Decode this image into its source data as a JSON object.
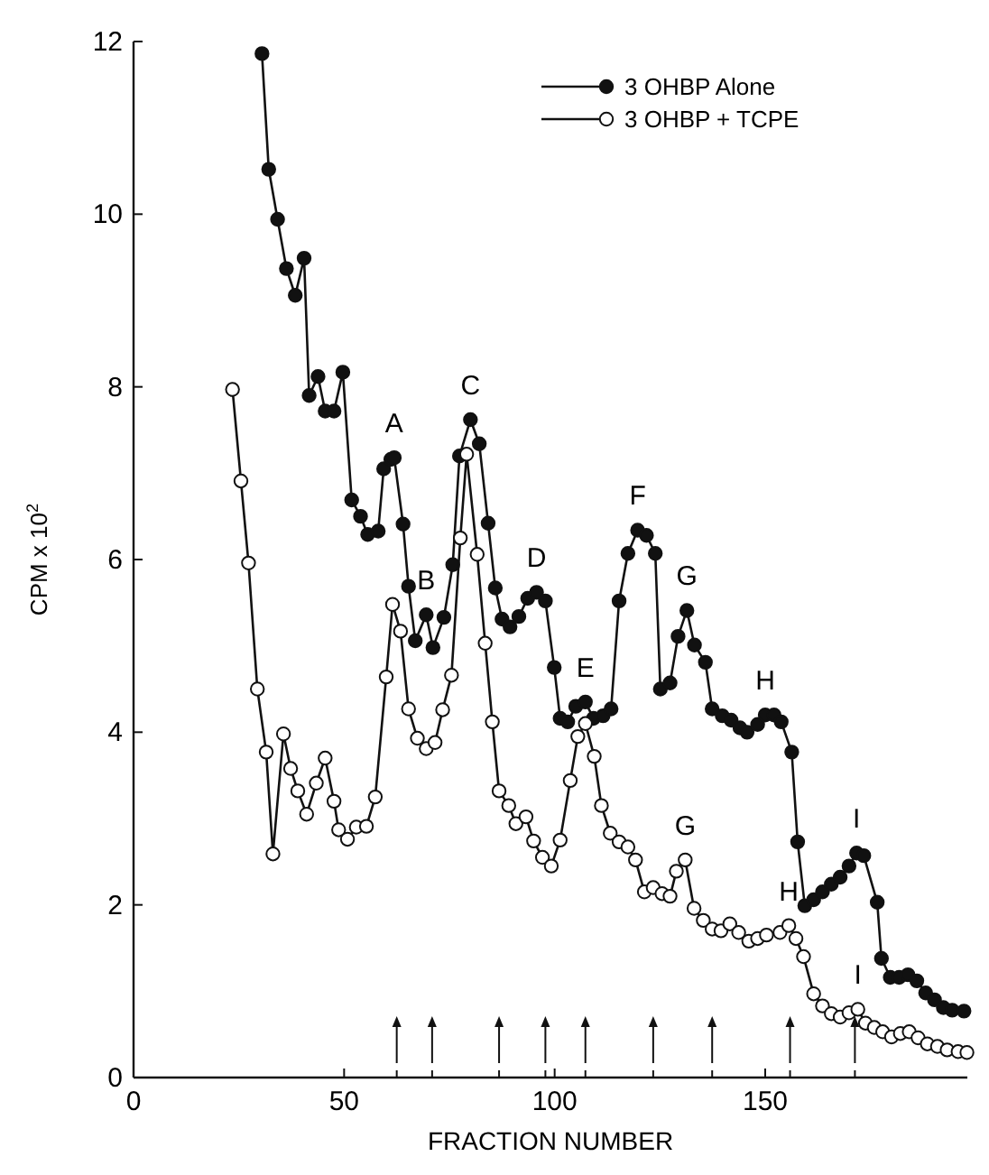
{
  "chart_data": {
    "type": "line",
    "xlabel": "FRACTION NUMBER",
    "ylabel": "CPM x 10$^{2}$",
    "xlim": [
      0,
      198
    ],
    "xticks": [
      0,
      50,
      100,
      150,
      {
        "value": 62.5,
        "label": null
      },
      {
        "value": 70.9,
        "label": null
      },
      {
        "value": 86.8,
        "label": null
      },
      {
        "value": 97.8,
        "label": null
      },
      {
        "value": 107.3,
        "label": null
      },
      {
        "value": 123.4,
        "label": null
      },
      {
        "value": 137.4,
        "label": null
      },
      {
        "value": 155.9,
        "label": null
      },
      {
        "value": 171.3,
        "label": null
      }
    ],
    "ylim": [
      0,
      12
    ],
    "yticks": [
      0,
      2,
      4,
      6,
      8,
      10,
      12
    ],
    "grid": false,
    "legend": "top right",
    "line_style": "solid",
    "tick_labels": "xy",
    "series": [
      {
        "name": "3 OHBP Alone",
        "color": "#111111",
        "marker": "circle",
        "x": [
          30.5,
          32.1,
          34.2,
          36.3,
          38.4,
          40.5,
          41.7,
          43.8,
          45.5,
          47.6,
          49.7,
          51.8,
          53.9,
          55.6,
          58.1,
          59.4,
          61.1,
          61.9,
          64.0,
          65.3,
          66.9,
          69.5,
          71.1,
          73.7,
          75.8,
          77.4,
          80.0,
          82.1,
          84.2,
          85.9,
          87.5,
          89.4,
          91.5,
          93.6,
          95.7,
          97.8,
          99.9,
          101.3,
          103.1,
          105.0,
          107.3,
          109.2,
          111.5,
          113.4,
          115.3,
          117.4,
          119.7,
          121.8,
          123.9,
          125.1,
          127.4,
          129.3,
          131.4,
          133.2,
          135.8,
          137.4,
          139.8,
          141.9,
          144.0,
          145.7,
          148.2,
          150.0,
          152.1,
          153.8,
          156.3,
          157.7,
          159.4,
          161.5,
          163.6,
          165.7,
          167.8,
          169.9,
          171.7,
          173.4,
          176.6,
          177.6,
          179.7,
          181.8,
          183.9,
          186.0,
          188.1,
          190.2,
          192.3,
          194.4,
          197.2
        ],
        "values": [
          11.86,
          10.52,
          9.94,
          9.37,
          9.06,
          9.49,
          7.9,
          8.12,
          7.72,
          7.72,
          8.17,
          6.69,
          6.5,
          6.29,
          6.33,
          7.05,
          7.16,
          7.18,
          6.41,
          5.69,
          5.06,
          5.36,
          4.98,
          5.33,
          5.94,
          7.2,
          7.62,
          7.34,
          6.42,
          5.67,
          5.31,
          5.22,
          5.34,
          5.55,
          5.62,
          5.52,
          4.75,
          4.16,
          4.12,
          4.3,
          4.35,
          4.16,
          4.19,
          4.27,
          5.52,
          6.07,
          6.34,
          6.28,
          6.07,
          4.5,
          4.57,
          5.11,
          5.41,
          5.01,
          4.81,
          4.27,
          4.19,
          4.14,
          4.05,
          4.0,
          4.09,
          4.2,
          4.2,
          4.12,
          3.77,
          2.73,
          1.99,
          2.06,
          2.15,
          2.24,
          2.32,
          2.45,
          2.6,
          2.57,
          2.03,
          1.38,
          1.16,
          1.16,
          1.19,
          1.12,
          0.98,
          0.9,
          0.81,
          0.78,
          0.77
        ]
      },
      {
        "name": "3 OHBP + TCPE",
        "color": "#111111",
        "marker": "circle",
        "x": [
          23.5,
          25.5,
          27.3,
          29.4,
          31.5,
          33.1,
          35.6,
          37.3,
          39.0,
          41.1,
          43.4,
          45.5,
          47.6,
          48.7,
          50.8,
          52.9,
          55.3,
          57.4,
          60.0,
          61.5,
          63.4,
          65.3,
          67.4,
          69.5,
          71.6,
          73.4,
          75.5,
          77.6,
          79.1,
          81.6,
          83.5,
          85.2,
          86.8,
          89.1,
          90.8,
          93.2,
          95.0,
          97.1,
          99.2,
          101.3,
          103.7,
          105.5,
          107.3,
          109.4,
          111.1,
          113.2,
          115.3,
          117.4,
          119.2,
          121.3,
          123.4,
          125.5,
          127.4,
          128.9,
          131.0,
          133.1,
          135.3,
          137.4,
          139.5,
          141.6,
          143.7,
          146.1,
          148.2,
          150.3,
          153.5,
          155.6,
          157.3,
          159.1,
          161.5,
          163.6,
          165.7,
          167.8,
          169.9,
          172.0,
          173.8,
          175.9,
          177.9,
          180.0,
          182.1,
          184.2,
          186.3,
          188.5,
          190.9,
          193.2,
          195.8,
          197.9
        ],
        "values": [
          7.97,
          6.91,
          5.96,
          4.5,
          3.77,
          2.59,
          3.98,
          3.58,
          3.32,
          3.05,
          3.41,
          3.7,
          3.2,
          2.87,
          2.76,
          2.9,
          2.91,
          3.25,
          4.64,
          5.48,
          5.17,
          4.27,
          3.93,
          3.81,
          3.88,
          4.26,
          4.66,
          6.25,
          7.22,
          6.06,
          5.03,
          4.12,
          3.32,
          3.15,
          2.94,
          3.02,
          2.74,
          2.55,
          2.45,
          2.75,
          3.44,
          3.95,
          4.1,
          3.72,
          3.15,
          2.83,
          2.73,
          2.67,
          2.52,
          2.15,
          2.2,
          2.13,
          2.1,
          2.39,
          2.52,
          1.96,
          1.82,
          1.72,
          1.7,
          1.78,
          1.68,
          1.58,
          1.61,
          1.65,
          1.68,
          1.76,
          1.61,
          1.4,
          0.97,
          0.83,
          0.74,
          0.7,
          0.75,
          0.79,
          0.63,
          0.58,
          0.53,
          0.47,
          0.51,
          0.53,
          0.46,
          0.39,
          0.36,
          0.32,
          0.3,
          0.29
        ]
      }
    ],
    "annotations": [
      {
        "text": "A",
        "x": 61.9,
        "y": 7.18
      },
      {
        "text": "B",
        "x": 69.5,
        "y": 5.36
      },
      {
        "text": "C",
        "x": 80.0,
        "y": 7.62
      },
      {
        "text": "D",
        "x": 95.7,
        "y": 5.62
      },
      {
        "text": "E",
        "x": 107.3,
        "y": 4.35
      },
      {
        "text": "F",
        "x": 119.7,
        "y": 6.34
      },
      {
        "text": "G",
        "x": 131.4,
        "y": 5.41
      },
      {
        "text": "H",
        "x": 150.0,
        "y": 4.2
      },
      {
        "text": "I",
        "x": 171.7,
        "y": 2.6
      },
      {
        "text": "G",
        "x": 131.0,
        "y": 2.52
      },
      {
        "text": "H",
        "x": 155.6,
        "y": 1.76
      },
      {
        "text": "I",
        "x": 172.0,
        "y": 0.79
      }
    ]
  }
}
